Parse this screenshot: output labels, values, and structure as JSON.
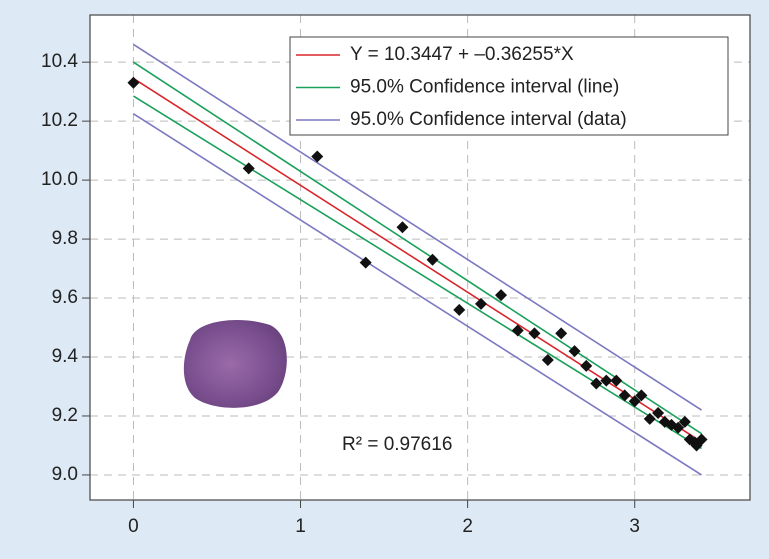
{
  "chart_data": {
    "type": "scatter",
    "xlim": [
      -0.26,
      3.69
    ],
    "ylim": [
      8.915,
      10.56
    ],
    "xticks": [
      0,
      1,
      2,
      3
    ],
    "yticks": [
      {
        "value": 9,
        "label": "9.0"
      },
      9.2,
      9.4,
      9.6,
      9.8,
      {
        "value": 10,
        "label": "10.0"
      },
      10.2,
      10.4
    ],
    "grid": true,
    "legend": "upper right",
    "annotation": "R² = 0.97616",
    "points": {
      "color": "#111111",
      "x": [
        0,
        0.69,
        1.1,
        1.39,
        1.61,
        1.79,
        1.95,
        2.08,
        2.2,
        2.3,
        2.4,
        2.48,
        2.56,
        2.64,
        2.71,
        2.77,
        2.83,
        2.89,
        2.94,
        3.0,
        3.04,
        3.09,
        3.14,
        3.18,
        3.22,
        3.26,
        3.3,
        3.33,
        3.36,
        3.37,
        3.4
      ],
      "y": [
        10.33,
        10.04,
        10.08,
        9.72,
        9.84,
        9.73,
        9.56,
        9.58,
        9.61,
        9.49,
        9.48,
        9.39,
        9.48,
        9.42,
        9.37,
        9.31,
        9.32,
        9.32,
        9.27,
        9.25,
        9.27,
        9.19,
        9.21,
        9.18,
        9.17,
        9.16,
        9.18,
        9.12,
        9.11,
        9.1,
        9.12
      ]
    },
    "series": [
      {
        "name": "Y = 10.3447 + –0.36255*X",
        "color": "#d9262b",
        "x": [
          0,
          3.4
        ],
        "values": [
          10.345,
          9.112
        ]
      },
      {
        "name": "95.0% Confidence interval (line)",
        "color": "#1aa05a",
        "x": [
          0,
          3.4
        ],
        "values": [
          10.4,
          9.14
        ]
      },
      {
        "name": "95.0% Confidence interval (line)",
        "color": "#1aa05a",
        "x": [
          0,
          3.4
        ],
        "values": [
          10.285,
          9.09
        ]
      },
      {
        "name": "95.0% Confidence interval (data)",
        "color": "#7a78c0",
        "x": [
          0,
          3.4
        ],
        "values": [
          10.46,
          9.22
        ]
      },
      {
        "name": "95.0% Confidence interval (data)",
        "color": "#7a78c0",
        "x": [
          0,
          3.4
        ],
        "values": [
          10.225,
          9.0
        ]
      }
    ]
  }
}
